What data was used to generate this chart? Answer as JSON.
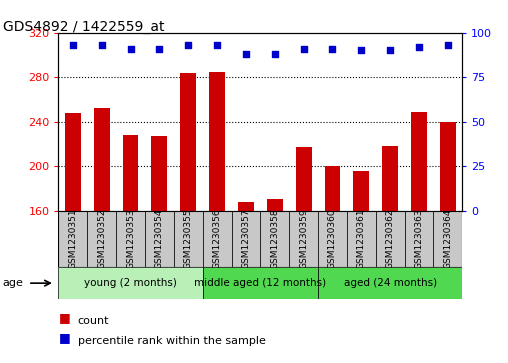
{
  "title": "GDS4892 / 1422559_at",
  "samples": [
    "GSM1230351",
    "GSM1230352",
    "GSM1230353",
    "GSM1230354",
    "GSM1230355",
    "GSM1230356",
    "GSM1230357",
    "GSM1230358",
    "GSM1230359",
    "GSM1230360",
    "GSM1230361",
    "GSM1230362",
    "GSM1230363",
    "GSM1230364"
  ],
  "counts": [
    248,
    252,
    228,
    227,
    284,
    285,
    168,
    170,
    217,
    200,
    196,
    218,
    249,
    240
  ],
  "percentile_ranks": [
    93,
    93,
    91,
    91,
    93,
    93,
    88,
    88,
    91,
    91,
    90,
    90,
    92,
    93
  ],
  "ylim_left": [
    160,
    320
  ],
  "ylim_right": [
    0,
    100
  ],
  "yticks_left": [
    160,
    200,
    240,
    280,
    320
  ],
  "yticks_right": [
    0,
    25,
    50,
    75,
    100
  ],
  "groups": [
    {
      "label": "young (2 months)",
      "start": 0,
      "end": 5,
      "color": "#b8f0b8"
    },
    {
      "label": "middle aged (12 months)",
      "start": 5,
      "end": 9,
      "color": "#50d850"
    },
    {
      "label": "aged (24 months)",
      "start": 9,
      "end": 14,
      "color": "#50d850"
    }
  ],
  "bar_color": "#cc0000",
  "dot_color": "#0000cc",
  "label_bg_color": "#c8c8c8",
  "age_label": "age",
  "legend_count_label": "count",
  "legend_percentile_label": "percentile rank within the sample",
  "grid_yticks": [
    200,
    240,
    280
  ]
}
